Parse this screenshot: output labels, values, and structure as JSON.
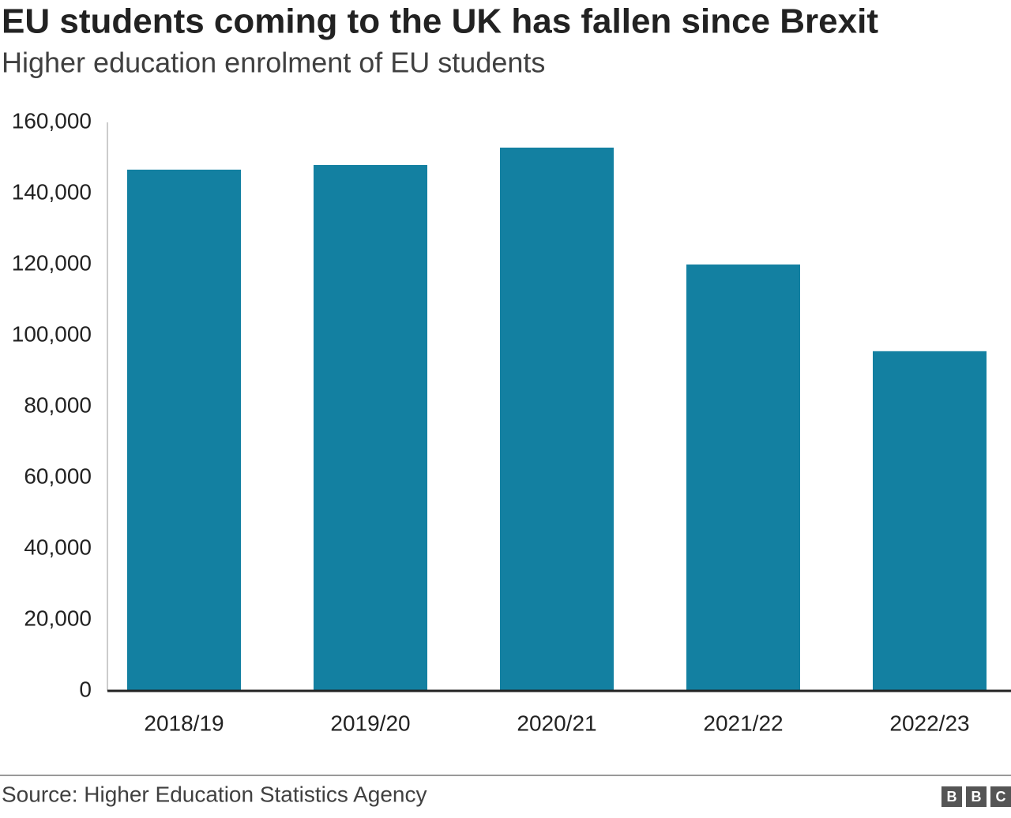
{
  "chart_data": {
    "type": "bar",
    "title": "EU students coming to the UK has fallen since Brexit",
    "subtitle": "Higher education enrolment of EU students",
    "categories": [
      "2018/19",
      "2019/20",
      "2020/21",
      "2021/22",
      "2022/23"
    ],
    "values": [
      146700,
      148000,
      152900,
      120000,
      95600
    ],
    "color": "#1380a1",
    "ylim": [
      0,
      160000
    ],
    "yticks": [
      0,
      {
        "value": 20000,
        "label": "20,000"
      },
      {
        "value": 40000,
        "label": "40,000"
      },
      {
        "value": 60000,
        "label": "60,000"
      },
      {
        "value": 80000,
        "label": "80,000"
      },
      {
        "value": 100000,
        "label": "100,000"
      },
      {
        "value": 120000,
        "label": "120,000"
      },
      {
        "value": 140000,
        "label": "140,000"
      },
      {
        "value": 160000,
        "label": "160,000"
      }
    ],
    "grid": false,
    "source": "Source: Higher Education Statistics Agency",
    "logo": [
      "B",
      "B",
      "C"
    ]
  }
}
